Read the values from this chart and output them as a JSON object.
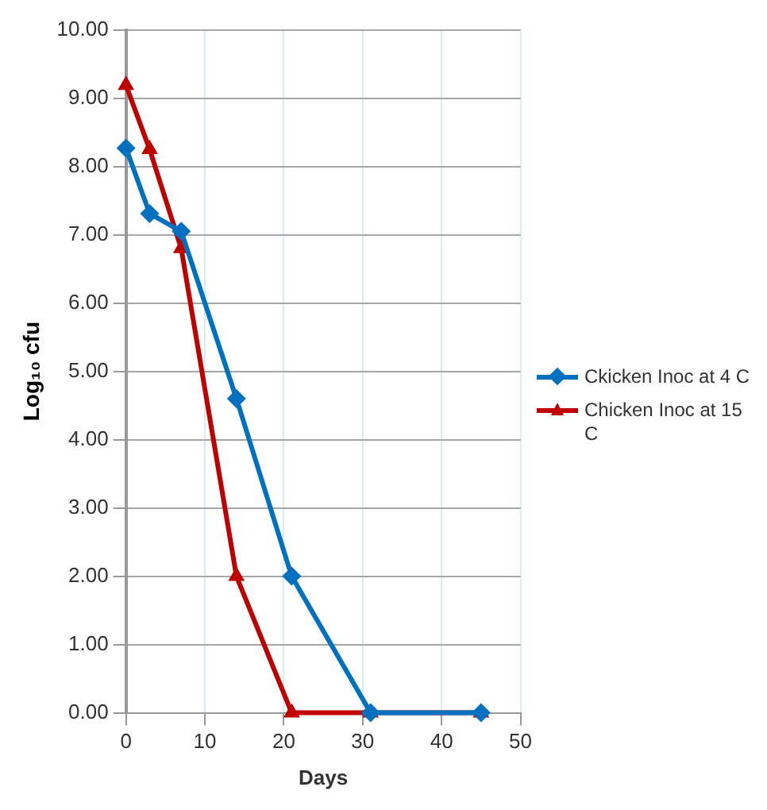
{
  "chart_data": {
    "type": "line",
    "xlabel": "Days",
    "ylabel": "Log₁₀ cfu",
    "xlim": [
      0,
      50
    ],
    "xticks": [
      0,
      10,
      20,
      30,
      40,
      50
    ],
    "ylim": [
      0,
      10
    ],
    "yticks": [
      {
        "value": 0,
        "label": "0.00"
      },
      {
        "value": 1,
        "label": "1.00"
      },
      {
        "value": 2,
        "label": "2.00"
      },
      {
        "value": 3,
        "label": "3.00"
      },
      {
        "value": 4,
        "label": "4.00"
      },
      {
        "value": 5,
        "label": "5.00"
      },
      {
        "value": 6,
        "label": "6.00"
      },
      {
        "value": 7,
        "label": "7.00"
      },
      {
        "value": 8,
        "label": "8.00"
      },
      {
        "value": 9,
        "label": "9.00"
      },
      {
        "value": 10,
        "label": "10.00"
      }
    ],
    "x": [
      0,
      3,
      7,
      14,
      21,
      31,
      45
    ],
    "grid": true,
    "legend": "right",
    "series": [
      {
        "name": "Ckicken Inoc at 4 C",
        "color": "#0070c0",
        "marker": "diamond",
        "values": [
          8.27,
          7.31,
          7.05,
          4.6,
          2.0,
          0,
          0
        ]
      },
      {
        "name": "Chicken Inoc at 15 C",
        "color": "#c00000",
        "marker": "triangle",
        "values": [
          9.19,
          8.25,
          6.8,
          2.0,
          0,
          0,
          0
        ]
      }
    ]
  }
}
